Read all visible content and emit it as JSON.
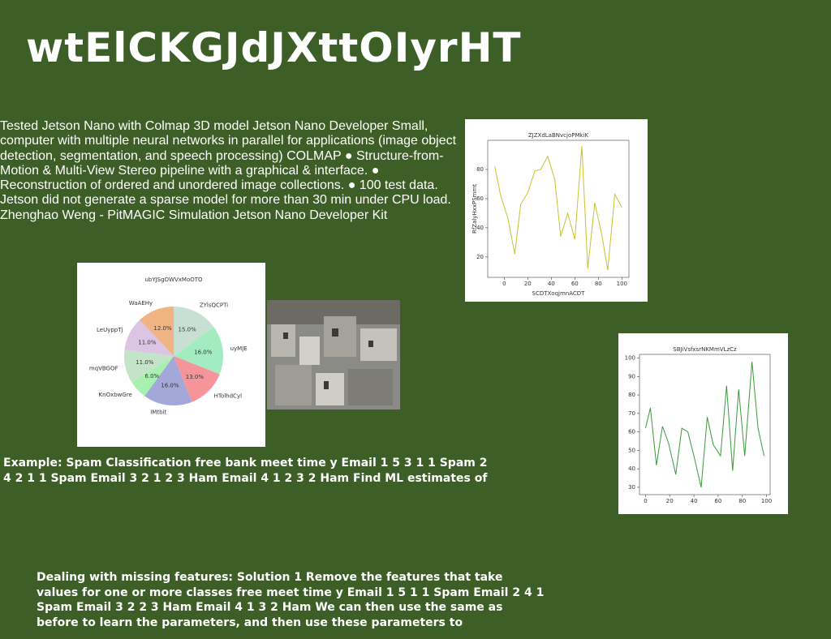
{
  "title": "wtElCKGJdJXttOIyrHT",
  "body_text": "Tested Jetson Nano with Colmap 3D model Jetson Nano Developer Small, computer with multiple neural networks in parallel for applications (image object detection, segmentation, and speech processing) COLMAP ● Structure-from-Motion & Multi-View Stereo pipeline with a graphical & interface. ● Reconstruction of ordered and unordered image collections. ● 100 test data. Jetson did not generate a sparse model for more than 30 min under CPU load. Zhenghao Weng - PitMAGIC Simulation Jetson Nano Developer Kit",
  "example_text": "Example: Spam Classification free bank meet time y Email 1 5 3 1 1 Spam 2 4 2 1 1 Spam Email 3 2 1 2 3 Ham Email 4 1 2 3 2 Ham Find ML estimates of",
  "missing_text": "Dealing with missing features: Solution 1 Remove the features that take values for one or more classes free meet time y Email 1 5 1 1 Spam Email 2 4 1 Spam Email 3 2 2 3 Ham Email 4 1 3 2 Ham We can then use the same as before to learn the parameters, and then use these parameters to",
  "chart_data": [
    {
      "type": "pie",
      "title": "ubYJSgOWVxMoOTO",
      "categories": [
        "ZYlsQCPTi",
        "uyMJE",
        "HTolhdCyl",
        "IMtbit",
        "KnOxbwGre",
        "mqVBGOF",
        "LeUyppTj",
        "WaAEHy"
      ],
      "values": [
        15,
        16,
        13,
        16,
        6,
        11,
        11,
        12
      ],
      "value_labels": [
        "15.0%",
        "16.0%",
        "13.0%",
        "16.0%",
        "6.0%",
        "11.0%",
        "11.0%",
        "12.0%"
      ],
      "colors": [
        "#c8e0d4",
        "#a3ecc2",
        "#f5959a",
        "#a3a8d8",
        "#a8f0b0",
        "#c4e4c8",
        "#dcc4e4",
        "#f0b482"
      ]
    },
    {
      "type": "line",
      "title": "ZJZXdLaBNvcjoPMkiK",
      "xlabel": "SCDTXoqjmnACDT",
      "ylabel": "RfZalyHxxPSmmt",
      "color": "#c9c22e",
      "x": [
        -8,
        -3,
        3,
        9,
        14,
        20,
        26,
        31,
        37,
        43,
        48,
        54,
        60,
        66,
        71,
        77,
        83,
        88,
        94,
        100
      ],
      "values": [
        82,
        62,
        47,
        22,
        56,
        64,
        79,
        80,
        89,
        73,
        34,
        50,
        32,
        96,
        12,
        57,
        35,
        11,
        63,
        54
      ],
      "xlim": [
        -14,
        106
      ],
      "ylim": [
        6,
        100
      ],
      "xticks": [
        0,
        20,
        40,
        60,
        80,
        100
      ],
      "yticks": [
        20,
        40,
        60,
        80
      ]
    },
    {
      "type": "line",
      "title": "SBJiVsfxsrNKMmVLzCz",
      "color": "#3a9a3a",
      "x": [
        0,
        4,
        9,
        14,
        19,
        25,
        30,
        35,
        40,
        46,
        51,
        56,
        62,
        67,
        72,
        77,
        82,
        88,
        93,
        98
      ],
      "values": [
        62,
        73,
        42,
        63,
        54,
        37,
        62,
        60,
        47,
        30,
        68,
        53,
        47,
        85,
        39,
        83,
        47,
        98,
        62,
        47
      ],
      "xlim": [
        -5,
        103
      ],
      "ylim": [
        26,
        102
      ],
      "xticks": [
        0,
        20,
        40,
        60,
        80,
        100
      ],
      "yticks": [
        30,
        40,
        50,
        60,
        70,
        80,
        90,
        100
      ]
    }
  ]
}
